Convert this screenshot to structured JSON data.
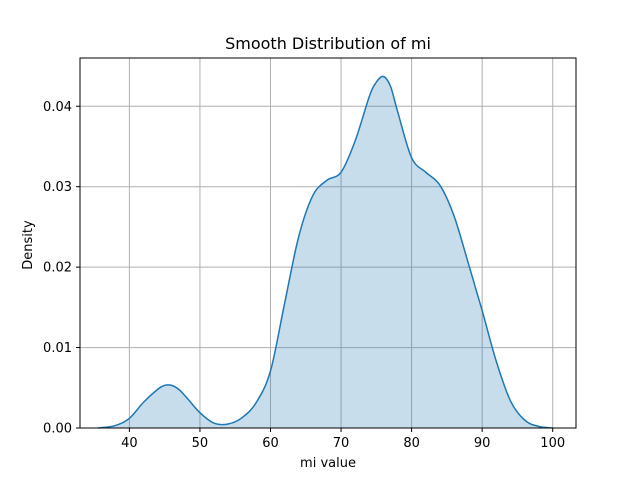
{
  "chart_data": {
    "type": "area",
    "title": "Smooth Distribution of mi",
    "xlabel": "mi value",
    "ylabel": "Density",
    "xlim": [
      33,
      103.3
    ],
    "ylim": [
      0,
      0.046
    ],
    "xticks": [
      40,
      50,
      60,
      70,
      80,
      90,
      100
    ],
    "yticks": [
      0.0,
      0.01,
      0.02,
      0.03,
      0.04
    ],
    "ytick_labels": [
      "0.00",
      "0.01",
      "0.02",
      "0.03",
      "0.04"
    ],
    "grid": true,
    "legend": "none",
    "line_color": "#1f77b4",
    "fill_color": "#1f77b4",
    "fill_opacity": 0.25,
    "series": [
      {
        "x": [
          35.6,
          38,
          40,
          42,
          44,
          45,
          46,
          47,
          48,
          50,
          52,
          54,
          56,
          58,
          60,
          62,
          64,
          66,
          68,
          70,
          72,
          74,
          75,
          76,
          77,
          78,
          80,
          82,
          84,
          86,
          88,
          90,
          92,
          94,
          96,
          98,
          100
        ],
        "y": [
          0.0,
          0.0003,
          0.0012,
          0.0032,
          0.0048,
          0.0053,
          0.0053,
          0.0048,
          0.0039,
          0.0019,
          0.0006,
          0.0005,
          0.0013,
          0.0032,
          0.0071,
          0.0155,
          0.0238,
          0.0289,
          0.0308,
          0.0318,
          0.0357,
          0.0412,
          0.043,
          0.0437,
          0.0425,
          0.0394,
          0.0336,
          0.0318,
          0.0302,
          0.0264,
          0.0206,
          0.0146,
          0.0083,
          0.0034,
          0.001,
          0.0002,
          0.0
        ]
      }
    ]
  }
}
